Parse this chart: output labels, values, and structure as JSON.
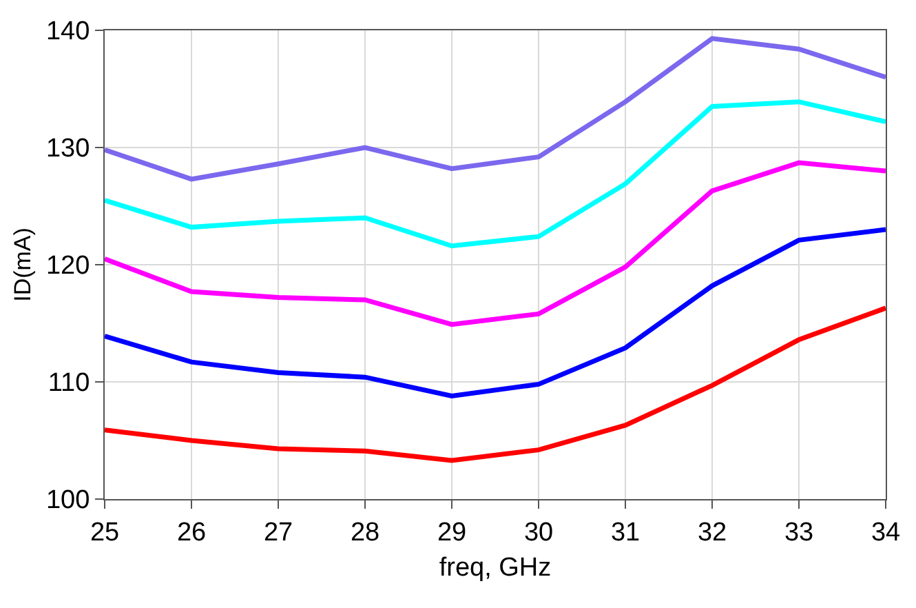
{
  "chart_data": {
    "type": "line",
    "xlabel": "freq, GHz",
    "ylabel": "ID(mA)",
    "x": [
      25,
      26,
      27,
      28,
      29,
      30,
      31,
      32,
      33,
      34
    ],
    "series": [
      {
        "color": "#7b68ee",
        "values": [
          129.8,
          127.3,
          128.6,
          130.0,
          128.2,
          129.2,
          133.9,
          139.3,
          138.4,
          136.0
        ]
      },
      {
        "color": "#00ffff",
        "values": [
          125.5,
          123.2,
          123.7,
          124.0,
          121.6,
          122.4,
          126.9,
          133.5,
          133.9,
          132.2
        ]
      },
      {
        "color": "#ff00ff",
        "values": [
          120.5,
          117.7,
          117.2,
          117.0,
          114.9,
          115.8,
          119.8,
          126.3,
          128.7,
          128.0
        ]
      },
      {
        "color": "#0000ff",
        "values": [
          113.9,
          111.7,
          110.8,
          110.4,
          108.8,
          109.8,
          112.9,
          118.2,
          122.1,
          123.0
        ]
      },
      {
        "color": "#ff0000",
        "values": [
          105.9,
          105.0,
          104.3,
          104.1,
          103.3,
          104.2,
          106.3,
          109.7,
          113.6,
          116.3
        ]
      }
    ],
    "xlim": [
      25,
      34
    ],
    "xticks": [
      25,
      26,
      27,
      28,
      29,
      30,
      31,
      32,
      33,
      34
    ],
    "ylim": [
      100,
      140
    ],
    "yticks": [
      100,
      110,
      120,
      130,
      140
    ],
    "grid": true,
    "marker": "none",
    "line_style": "solid"
  }
}
